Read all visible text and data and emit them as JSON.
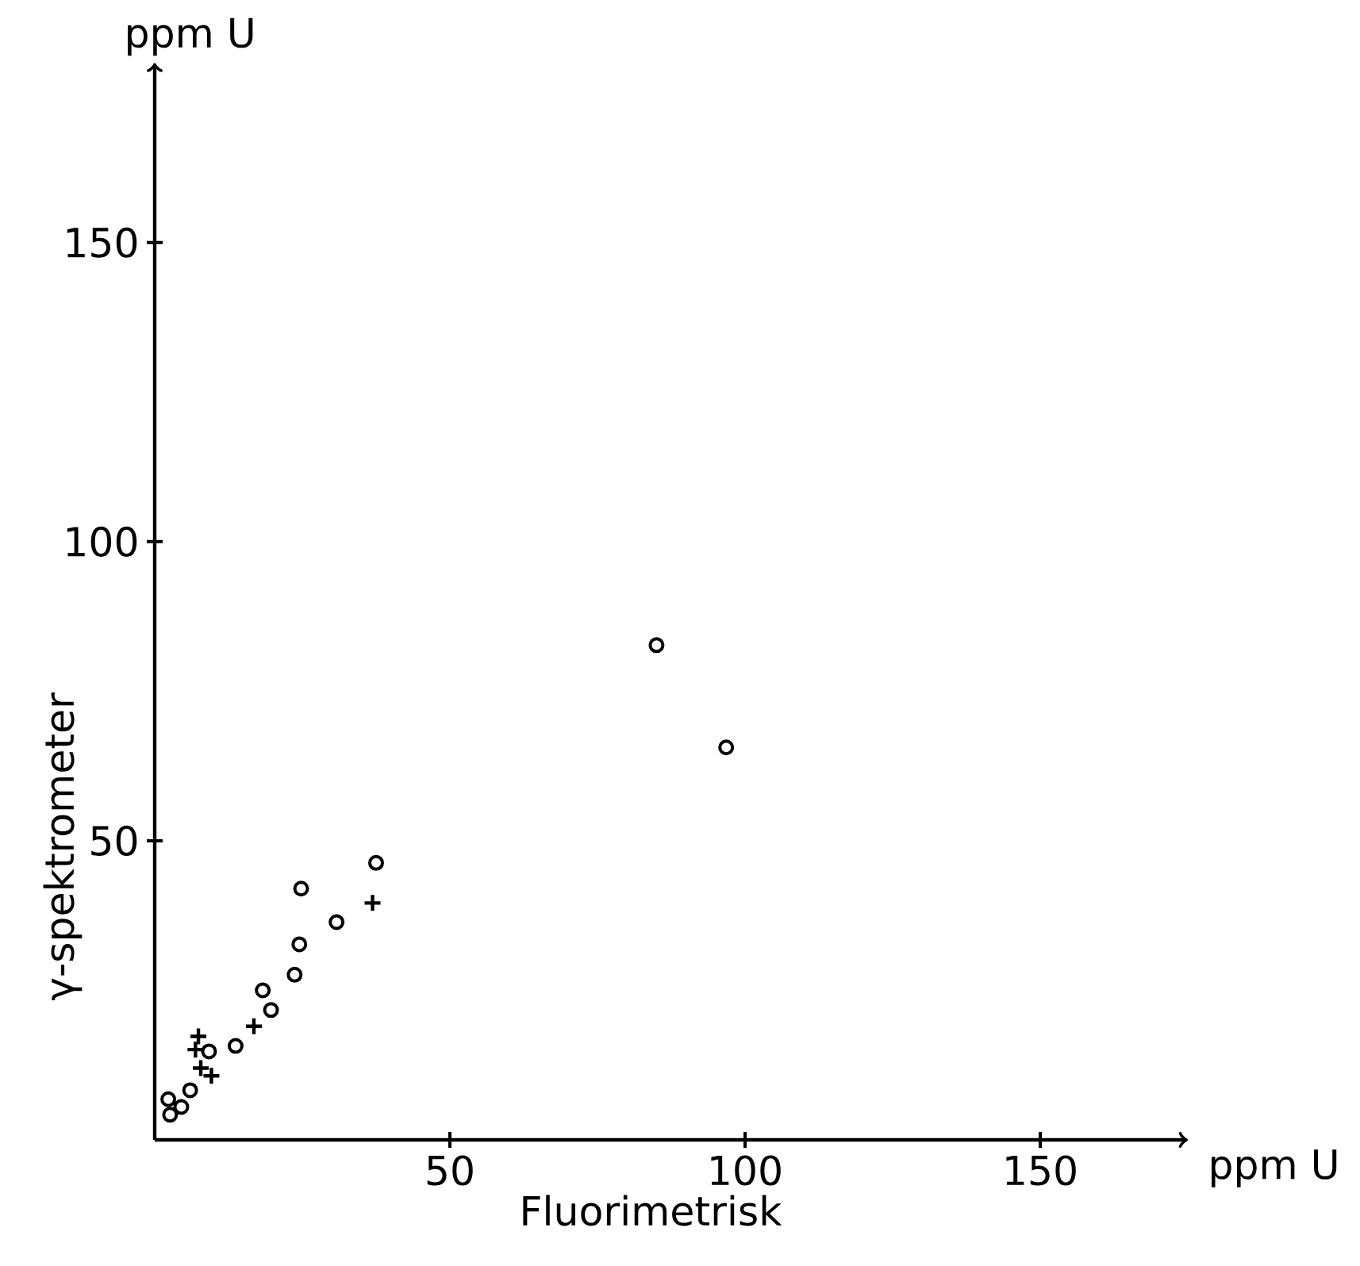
{
  "chart_data": {
    "type": "scatter",
    "xlabel": "Fluorimetrisk",
    "ylabel": "γ-spektrometer",
    "annotations": [
      "ppm U",
      "ppm U"
    ],
    "xlim": [
      0,
      175
    ],
    "ylim": [
      0,
      180
    ],
    "xticks": [
      50,
      100,
      150
    ],
    "yticks": [
      50,
      100,
      150
    ],
    "grid": false,
    "series": [
      {
        "color": "#000000",
        "marker": "circle",
        "x": [
          2.3,
          2.6,
          4.5,
          6.0,
          9.2,
          13.7,
          18.3,
          19.7,
          23.7,
          24.5,
          24.8,
          30.8,
          37.5,
          85.0,
          96.8
        ],
        "values": [
          6.8,
          4.2,
          5.5,
          8.3,
          14.8,
          15.7,
          25.0,
          21.7,
          27.6,
          32.7,
          42.0,
          36.4,
          46.3,
          82.7,
          65.6
        ]
      },
      {
        "color": "#000000",
        "marker": "cross",
        "x": [
          7.4,
          6.9,
          7.8,
          9.6,
          16.8,
          36.9
        ],
        "values": [
          17.3,
          15.1,
          12.0,
          10.7,
          19.0,
          39.6
        ]
      }
    ]
  }
}
